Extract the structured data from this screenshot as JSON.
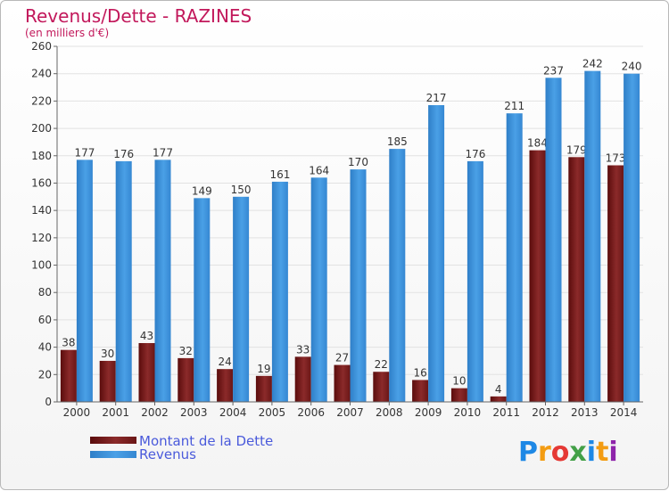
{
  "chart_data": {
    "type": "bar",
    "title": "Revenus/Dette - RAZINES",
    "subtitle": "(en milliers d'€)",
    "categories": [
      "2000",
      "2001",
      "2002",
      "2003",
      "2004",
      "2005",
      "2006",
      "2007",
      "2008",
      "2009",
      "2010",
      "2011",
      "2012",
      "2013",
      "2014"
    ],
    "series": [
      {
        "name": "Montant de la Dette",
        "color": "#7a1c1c",
        "values": [
          38,
          30,
          43,
          32,
          24,
          19,
          33,
          27,
          22,
          16,
          10,
          4,
          184,
          179,
          173
        ]
      },
      {
        "name": "Revenus",
        "color": "#3a8fd8",
        "values": [
          177,
          176,
          177,
          149,
          150,
          161,
          164,
          170,
          185,
          217,
          176,
          211,
          237,
          242,
          240
        ]
      }
    ],
    "ylim": [
      0,
      260
    ],
    "yticks": [
      0,
      20,
      40,
      60,
      80,
      100,
      120,
      140,
      160,
      180,
      200,
      220,
      240,
      260
    ],
    "grid": true,
    "legend_position": "bottom-left"
  },
  "brand": {
    "logo_letters": [
      "P",
      "r",
      "o",
      "x",
      "i",
      "t",
      "i"
    ],
    "logo_colors": [
      "#1e88e5",
      "#f39c12",
      "#e53935",
      "#43a047",
      "#1e88e5",
      "#f39c12",
      "#8e24aa"
    ]
  }
}
